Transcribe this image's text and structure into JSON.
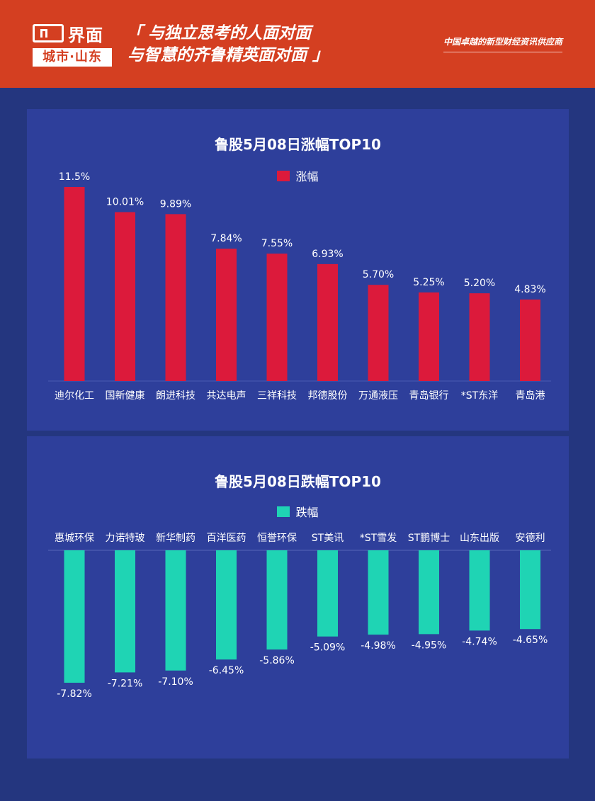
{
  "header": {
    "logo_name": "界面",
    "logo_sub": "城市·山东",
    "slogan_line1": "「 与独立思考的人面对面",
    "slogan_line2": "与智慧的齐鲁精英面对面 」",
    "tagline": "中国卓越的新型财经资讯供应商"
  },
  "colors": {
    "header_bg": "#d43f21",
    "page_bg": "#24367f",
    "panel_bg": "#2e3f9b",
    "gain_bar": "#dc1a3b",
    "loss_bar": "#1fd4b4"
  },
  "chart_data": [
    {
      "type": "bar",
      "title": "鲁股5月08日涨幅TOP10",
      "legend": "涨幅",
      "categories": [
        "迪尔化工",
        "国新健康",
        "朗进科技",
        "共达电声",
        "三祥科技",
        "邦德股份",
        "万通液压",
        "青岛银行",
        "*ST东洋",
        "青岛港"
      ],
      "values": [
        11.5,
        10.01,
        9.89,
        7.84,
        7.55,
        6.93,
        5.7,
        5.25,
        5.2,
        4.83
      ],
      "labels": [
        "11.5%",
        "10.01%",
        "9.89%",
        "7.84%",
        "7.55%",
        "6.93%",
        "5.70%",
        "5.25%",
        "5.20%",
        "4.83%"
      ],
      "ylim": [
        0,
        11.5
      ],
      "grid": false,
      "legend_position": "top"
    },
    {
      "type": "bar",
      "title": "鲁股5月08日跌幅TOP10",
      "legend": "跌幅",
      "categories": [
        "惠城环保",
        "力诺特玻",
        "新华制药",
        "百洋医药",
        "恒誉环保",
        "ST美讯",
        "*ST雪发",
        "ST鹏博士",
        "山东出版",
        "安德利"
      ],
      "values": [
        -7.82,
        -7.21,
        -7.1,
        -6.45,
        -5.86,
        -5.09,
        -4.98,
        -4.95,
        -4.74,
        -4.65
      ],
      "labels": [
        "-7.82%",
        "-7.21%",
        "-7.10%",
        "-6.45%",
        "-5.86%",
        "-5.09%",
        "-4.98%",
        "-4.95%",
        "-4.74%",
        "-4.65%"
      ],
      "ylim": [
        -7.82,
        0
      ],
      "grid": false,
      "legend_position": "top"
    }
  ]
}
